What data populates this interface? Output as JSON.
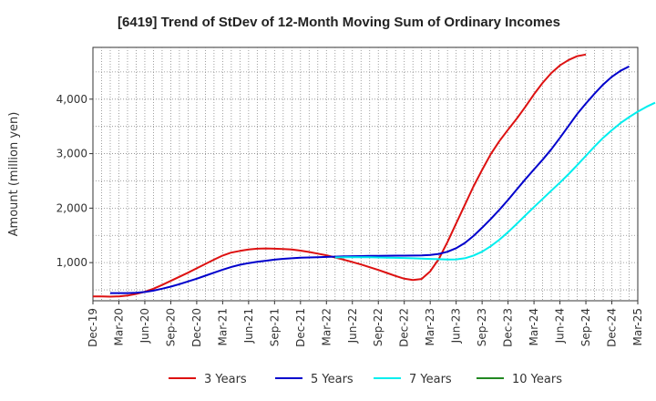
{
  "chart_data": {
    "type": "line",
    "title": "[6419]  Trend of StDev of 12-Month Moving Sum of Ordinary Incomes",
    "ylabel": "Amount (million yen)",
    "xlabel": "",
    "x_ticks": [
      "Dec-19",
      "Mar-20",
      "Jun-20",
      "Sep-20",
      "Dec-20",
      "Mar-21",
      "Jun-21",
      "Sep-21",
      "Dec-21",
      "Mar-22",
      "Jun-22",
      "Sep-22",
      "Dec-22",
      "Mar-23",
      "Jun-23",
      "Sep-23",
      "Dec-23",
      "Mar-24",
      "Jun-24",
      "Sep-24",
      "Dec-24",
      "Mar-25"
    ],
    "y_ticks": [
      "1,000",
      "2,000",
      "3,000",
      "4,000"
    ],
    "y_tick_values": [
      1000,
      2000,
      3000,
      4000
    ],
    "ylim": [
      300,
      4950
    ],
    "grid": true,
    "legend_position": "bottom",
    "series": [
      {
        "name": "3 Years",
        "color": "#dd1111",
        "start_index": 0,
        "values": [
          380,
          380,
          375,
          380,
          395,
          425,
          465,
          520,
          590,
          665,
          740,
          815,
          895,
          975,
          1055,
          1130,
          1185,
          1215,
          1240,
          1255,
          1260,
          1255,
          1250,
          1240,
          1220,
          1195,
          1165,
          1135,
          1095,
          1055,
          1010,
          965,
          915,
          865,
          810,
          755,
          705,
          680,
          700,
          840,
          1070,
          1380,
          1720,
          2060,
          2400,
          2700,
          2990,
          3230,
          3440,
          3640,
          3860,
          4090,
          4300,
          4480,
          4620,
          4720,
          4790,
          4820
        ]
      },
      {
        "name": "5 Years",
        "color": "#0000cc",
        "start_index": 2,
        "values": [
          440,
          440,
          440,
          445,
          460,
          485,
          520,
          560,
          605,
          655,
          705,
          760,
          815,
          870,
          920,
          960,
          990,
          1015,
          1035,
          1055,
          1070,
          1080,
          1090,
          1095,
          1100,
          1105,
          1110,
          1115,
          1118,
          1120,
          1123,
          1125,
          1127,
          1128,
          1128,
          1130,
          1132,
          1140,
          1160,
          1200,
          1265,
          1360,
          1490,
          1640,
          1800,
          1970,
          2150,
          2340,
          2530,
          2710,
          2890,
          3080,
          3290,
          3510,
          3730,
          3920,
          4100,
          4270,
          4410,
          4520,
          4600
        ]
      },
      {
        "name": "7 Years",
        "color": "#00eeee",
        "start_index": 28,
        "values": [
          1095,
          1098,
          1100,
          1100,
          1098,
          1095,
          1092,
          1088,
          1085,
          1080,
          1075,
          1068,
          1062,
          1058,
          1060,
          1080,
          1130,
          1200,
          1300,
          1420,
          1560,
          1710,
          1865,
          2020,
          2170,
          2320,
          2470,
          2625,
          2790,
          2960,
          3130,
          3290,
          3430,
          3560,
          3670,
          3770,
          3860,
          3935
        ]
      },
      {
        "name": "10 Years",
        "color": "#228822",
        "start_index": 0,
        "values": []
      }
    ]
  }
}
